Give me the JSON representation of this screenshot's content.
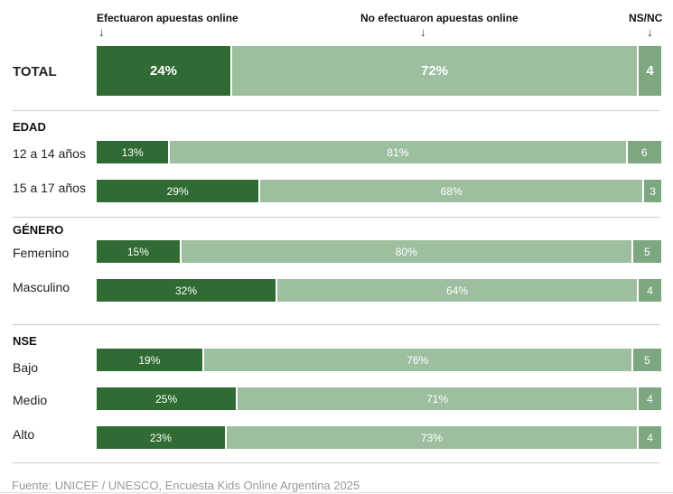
{
  "chart_data": {
    "type": "bar",
    "orientation": "horizontal-stacked-100",
    "series": [
      {
        "name": "Efectuaron apuestas online",
        "color": "#306b33"
      },
      {
        "name": "No efectuaron apuestas online",
        "color": "#9dbf9f"
      },
      {
        "name": "NS/NC",
        "color": "#7da780"
      }
    ],
    "total": {
      "label": "TOTAL",
      "values": [
        24,
        72,
        4
      ],
      "value_labels": [
        "24%",
        "72%",
        "4"
      ]
    },
    "groups": [
      {
        "title": "EDAD",
        "rows": [
          {
            "label": "12 a 14 años",
            "values": [
              13,
              81,
              6
            ],
            "value_labels": [
              "13%",
              "81%",
              "6"
            ]
          },
          {
            "label": "15 a 17 años",
            "values": [
              29,
              68,
              3
            ],
            "value_labels": [
              "29%",
              "68%",
              "3"
            ]
          }
        ]
      },
      {
        "title": "GÉNERO",
        "rows": [
          {
            "label": "Femenino",
            "values": [
              15,
              80,
              5
            ],
            "value_labels": [
              "15%",
              "80%",
              "5"
            ]
          },
          {
            "label": "Masculino",
            "values": [
              32,
              64,
              4
            ],
            "value_labels": [
              "32%",
              "64%",
              "4"
            ]
          }
        ]
      },
      {
        "title": "NSE",
        "rows": [
          {
            "label": "Bajo",
            "values": [
              19,
              76,
              5
            ],
            "value_labels": [
              "19%",
              "76%",
              "5"
            ]
          },
          {
            "label": "Medio",
            "values": [
              25,
              71,
              4
            ],
            "value_labels": [
              "25%",
              "71%",
              "4"
            ]
          },
          {
            "label": "Alto",
            "values": [
              23,
              73,
              4
            ],
            "value_labels": [
              "23%",
              "73%",
              "4"
            ]
          }
        ]
      }
    ],
    "xlim": [
      0,
      100
    ]
  },
  "source": "Fuente: UNICEF / UNESCO, Encuesta Kids Online Argentina 2025"
}
